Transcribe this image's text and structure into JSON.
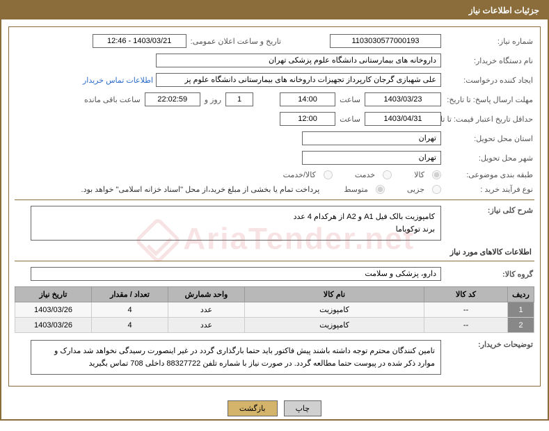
{
  "header_title": "جزئیات اطلاعات نیاز",
  "watermark_text": "AriaTender.net",
  "fields": {
    "need_no_label": "شماره نیاز:",
    "need_no": "1103030577000193",
    "announce_label": "تاریخ و ساعت اعلان عمومی:",
    "announce_value": "1403/03/21 - 12:46",
    "buyer_org_label": "نام دستگاه خریدار:",
    "buyer_org": "داروخانه های بیمارستانی دانشگاه علوم پزشکی تهران",
    "requester_label": "ایجاد کننده درخواست:",
    "requester": "علی شهبازی گرجان کارپرداز تجهیزات داروخانه های بیمارستانی دانشگاه علوم پز",
    "buyer_contact_link": "اطلاعات تماس خریدار",
    "deadline_label": "مهلت ارسال پاسخ: تا تاریخ:",
    "deadline_date": "1403/03/23",
    "hour_label": "ساعت",
    "deadline_time": "14:00",
    "days_and": "روز و",
    "days_value": "1",
    "countdown": "22:02:59",
    "remain_label": "ساعت باقی مانده",
    "validity_label": "حداقل تاریخ اعتبار قیمت: تا تاریخ:",
    "validity_date": "1403/04/31",
    "validity_time": "12:00",
    "province_label": "استان محل تحویل:",
    "province": "تهران",
    "city_label": "شهر محل تحویل:",
    "city": "تهران",
    "category_label": "طبقه بندی موضوعی:",
    "cat_goods": "کالا",
    "cat_service": "خدمت",
    "cat_both": "کالا/خدمت",
    "process_label": "نوع فرآیند خرید :",
    "proc_small": "جزیی",
    "proc_medium": "متوسط",
    "process_note": "پرداخت تمام یا بخشی از مبلغ خرید،از محل \"اسناد خزانه اسلامی\" خواهد بود.",
    "overview_label": "شرح کلی نیاز:",
    "overview_line1": "کامپوزیت بالک فیل A1 و A2 از هرکدام 4 عدد",
    "overview_line2": "برند توکویاما",
    "goods_section": "اطلاعات کالاهای مورد نیاز",
    "group_label": "گروه کالا:",
    "group_value": "دارو، پزشکی و سلامت",
    "buyer_notes_label": "توضیحات خریدار:",
    "buyer_notes": "تامین کنندگان محترم توجه داشته باشند پیش فاکتور باید حتما بارگذاری گردد در غیر اینصورت رسیدگی نخواهد شد مدارک و موارد ذکر شده در پیوست حتما مطالعه گردد. در صورت نیاز با شماره تلفن 88327722 داخلی 708 تماس بگیرید"
  },
  "table": {
    "columns": [
      "ردیف",
      "کد کالا",
      "نام کالا",
      "واحد شمارش",
      "تعداد / مقدار",
      "تاریخ نیاز"
    ],
    "col_widths": [
      "38px",
      "120px",
      "auto",
      "110px",
      "110px",
      "110px"
    ],
    "rows": [
      [
        "1",
        "--",
        "کامپوزیت",
        "عدد",
        "4",
        "1403/03/26"
      ],
      [
        "2",
        "--",
        "کامپوزیت",
        "عدد",
        "4",
        "1403/03/26"
      ]
    ]
  },
  "buttons": {
    "print": "چاپ",
    "back": "بازگشت"
  }
}
